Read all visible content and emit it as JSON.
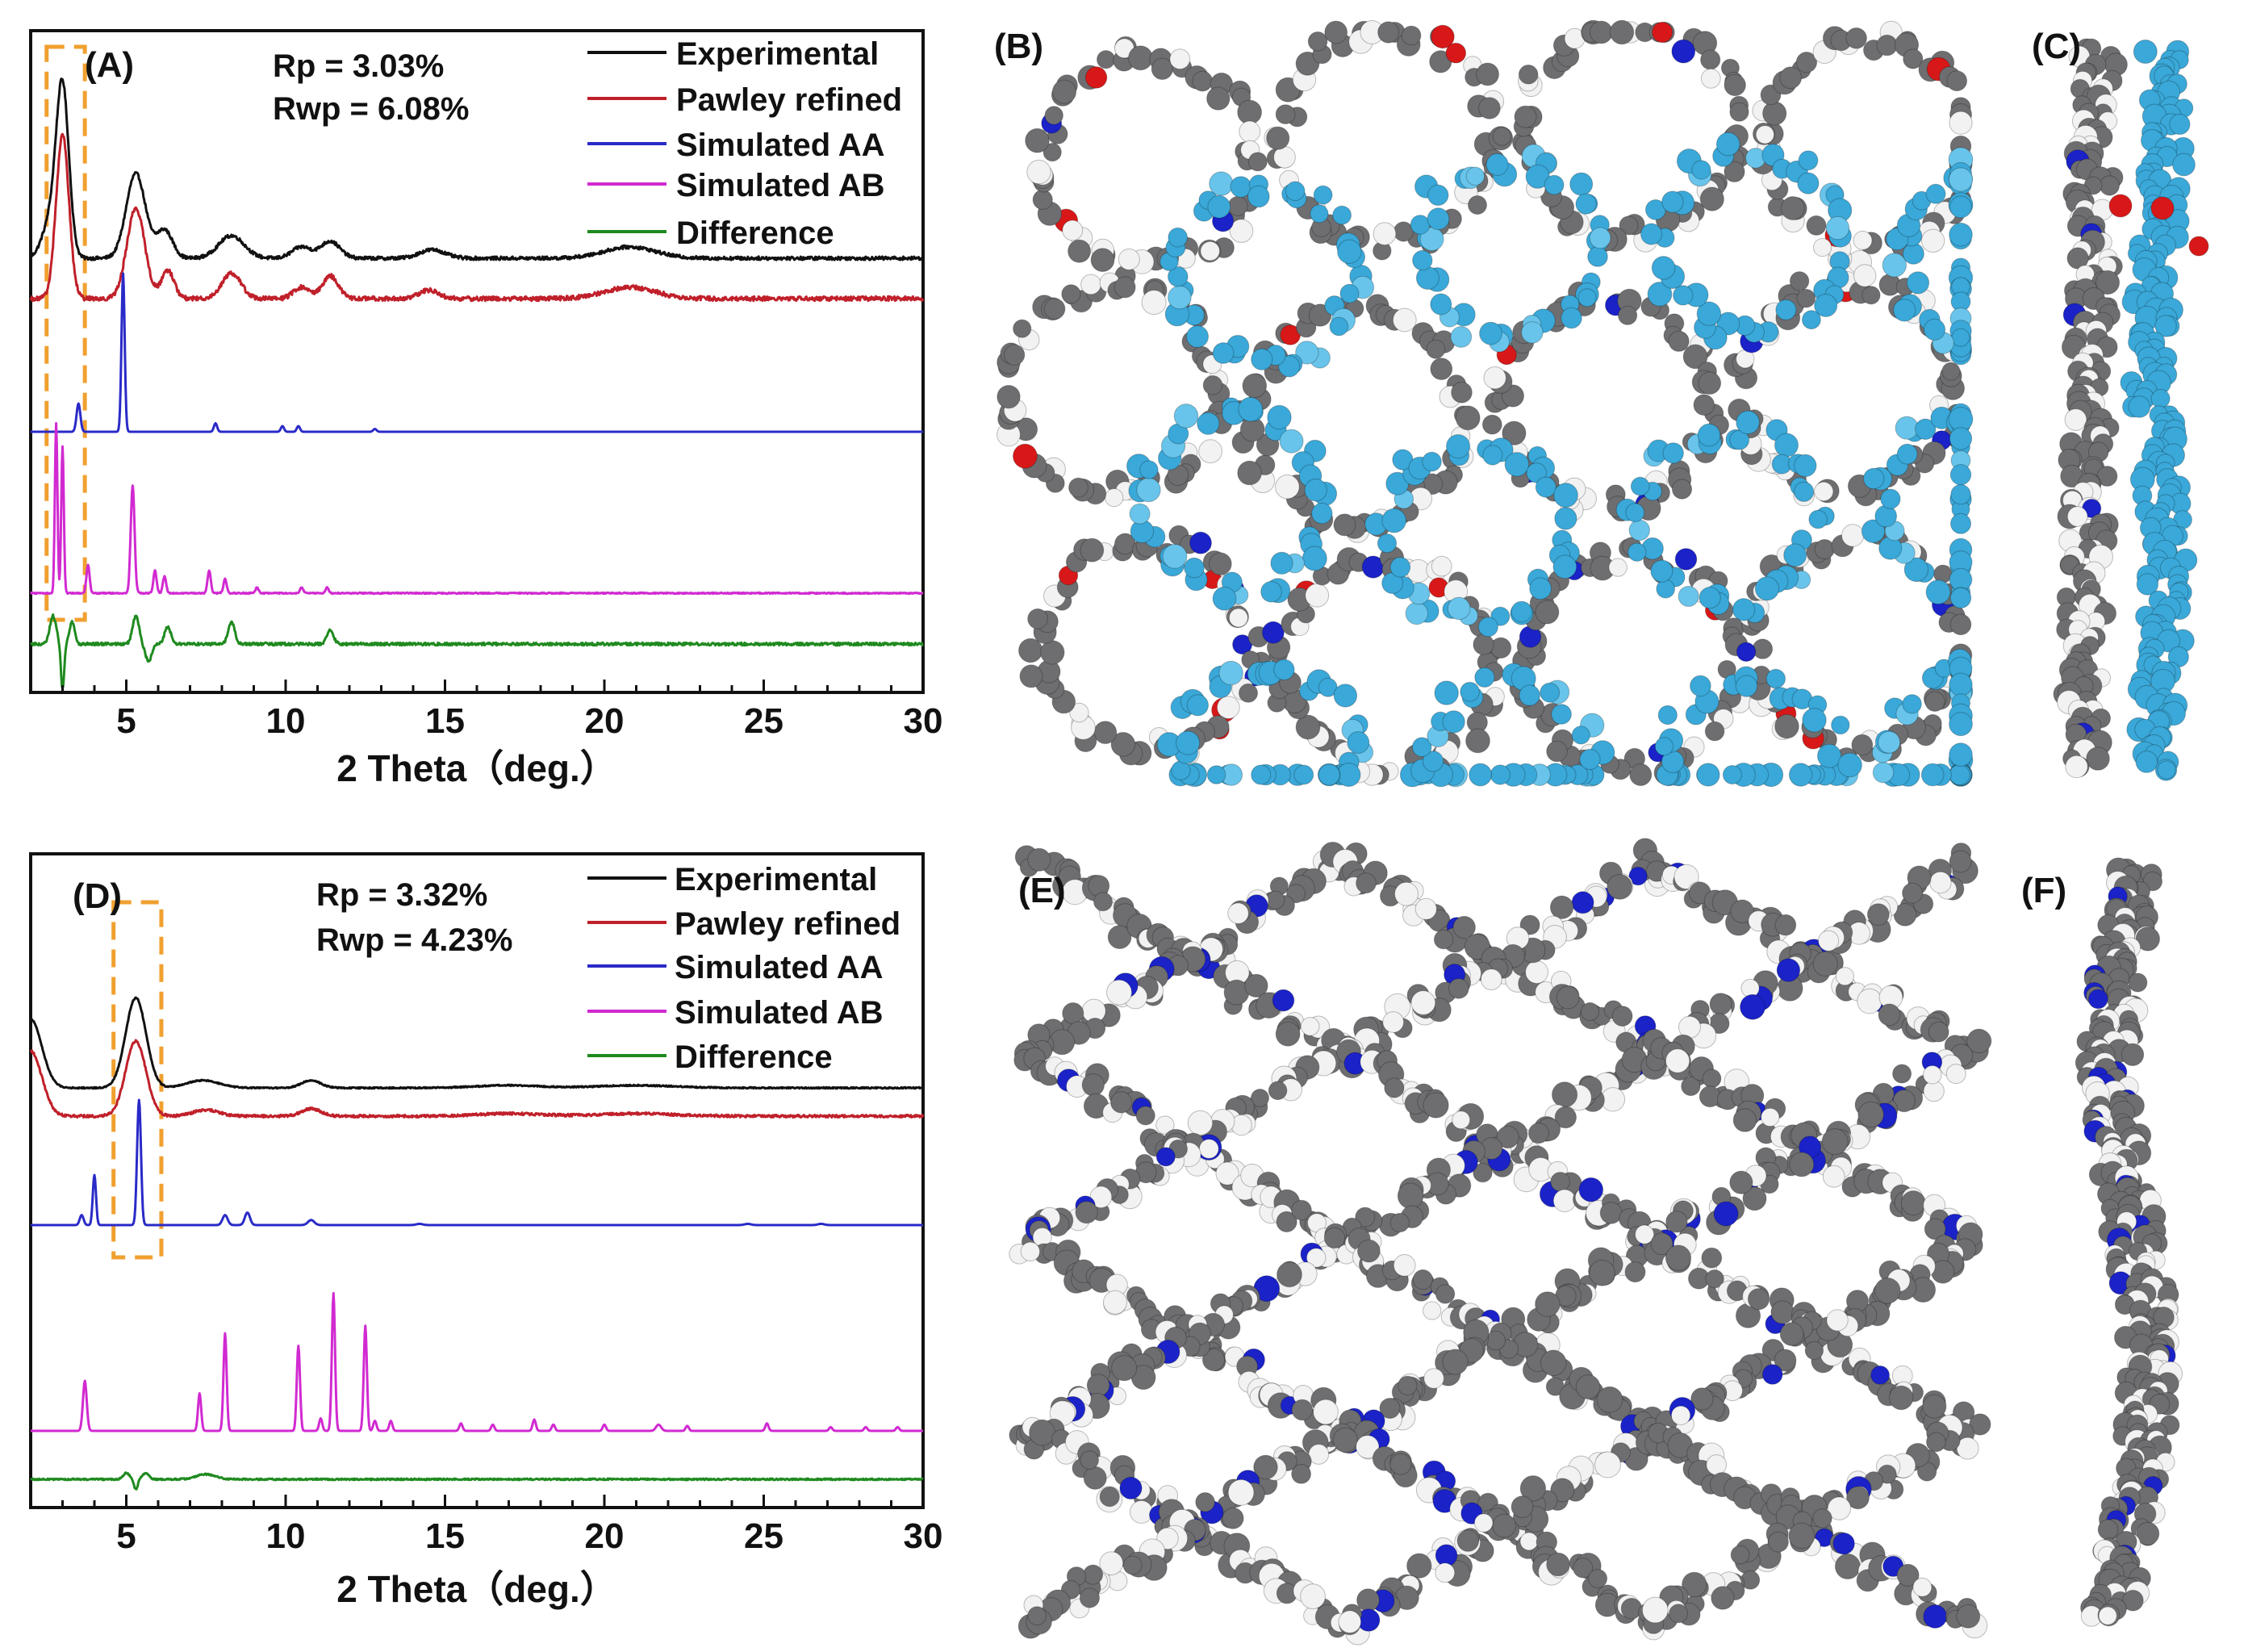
{
  "panels": {
    "A": {
      "label": "(A)",
      "rp": "Rp   = 3.03%",
      "rwp": "Rwp = 6.08%"
    },
    "B": {
      "label": "(B)"
    },
    "C": {
      "label": "(C)"
    },
    "D": {
      "label": "(D)",
      "rp": "Rp   = 3.32%",
      "rwp": "Rwp = 4.23%"
    },
    "E": {
      "label": "(E)"
    },
    "F": {
      "label": "(F)"
    }
  },
  "legend": [
    "Experimental",
    "Pawley refined",
    "Simulated AA",
    "Simulated AB",
    "Difference"
  ],
  "colors": {
    "experimental": "#111111",
    "pawley": "#c0202a",
    "aa": "#2a2ac8",
    "ab": "#d12ad1",
    "difference": "#1f8a1f",
    "highlight": "#f0a030",
    "carbon": "#6e6e70",
    "hydrogen": "#f2f2f2",
    "nitrogen": "#1a22c8",
    "oxygen": "#d81818",
    "layer2": "#3aa8d8"
  },
  "chart_data": [
    {
      "type": "line",
      "panel": "A",
      "xlabel": "2 Theta（deg.）",
      "xlim": [
        2,
        30
      ],
      "xticks": [
        5,
        10,
        15,
        20,
        25,
        30
      ],
      "highlight_range": [
        2.5,
        3.7
      ],
      "series": [
        {
          "name": "Experimental",
          "baseline": 0,
          "noise": 0.6,
          "peaks": [
            [
              3.0,
              60,
              0.2
            ],
            [
              2.6,
              12,
              0.25
            ],
            [
              5.3,
              30,
              0.3
            ],
            [
              6.2,
              10,
              0.25
            ],
            [
              8.3,
              8,
              0.4
            ],
            [
              10.5,
              4,
              0.3
            ],
            [
              11.4,
              6,
              0.3
            ],
            [
              14.6,
              3,
              0.4
            ],
            [
              20.8,
              4,
              0.8
            ]
          ]
        },
        {
          "name": "Pawley refined",
          "baseline": 0,
          "noise": 0.8,
          "peaks": [
            [
              3.0,
              58,
              0.2
            ],
            [
              5.3,
              32,
              0.28
            ],
            [
              6.3,
              10,
              0.2
            ],
            [
              8.3,
              9,
              0.3
            ],
            [
              10.5,
              4,
              0.25
            ],
            [
              11.4,
              8,
              0.25
            ],
            [
              14.5,
              3,
              0.3
            ],
            [
              20.8,
              4,
              0.8
            ]
          ]
        },
        {
          "name": "Simulated AA",
          "baseline": 0,
          "noise": 0,
          "peaks": [
            [
              3.5,
              10,
              0.06
            ],
            [
              4.9,
              56,
              0.05
            ],
            [
              7.8,
              3,
              0.05
            ],
            [
              9.9,
              2,
              0.05
            ],
            [
              10.4,
              2,
              0.05
            ],
            [
              12.8,
              1,
              0.05
            ]
          ]
        },
        {
          "name": "Simulated AB",
          "baseline": 0,
          "noise": 0.2,
          "peaks": [
            [
              2.8,
              60,
              0.04
            ],
            [
              3.0,
              52,
              0.04
            ],
            [
              3.8,
              10,
              0.05
            ],
            [
              5.2,
              38,
              0.06
            ],
            [
              5.9,
              8,
              0.05
            ],
            [
              6.2,
              6,
              0.05
            ],
            [
              7.6,
              8,
              0.05
            ],
            [
              8.1,
              5,
              0.05
            ],
            [
              9.1,
              2,
              0.05
            ],
            [
              10.5,
              2,
              0.05
            ],
            [
              11.3,
              2,
              0.05
            ]
          ]
        },
        {
          "name": "Difference",
          "baseline": 0,
          "noise": 0.5,
          "peaks": [
            [
              2.7,
              10,
              0.1
            ],
            [
              3.0,
              -16,
              0.05
            ],
            [
              3.3,
              8,
              0.08
            ],
            [
              5.3,
              10,
              0.1
            ],
            [
              5.7,
              -6,
              0.1
            ],
            [
              6.3,
              6,
              0.1
            ],
            [
              8.3,
              8,
              0.1
            ],
            [
              11.4,
              5,
              0.1
            ]
          ]
        }
      ]
    },
    {
      "type": "line",
      "panel": "D",
      "xlabel": "2 Theta（deg.）",
      "xlim": [
        2,
        30
      ],
      "xticks": [
        5,
        10,
        15,
        20,
        25,
        30
      ],
      "highlight_range": [
        4.6,
        6.1
      ],
      "series": [
        {
          "name": "Experimental",
          "baseline": 0,
          "noise": 0.5,
          "peaks": [
            [
              2.0,
              55,
              0.35
            ],
            [
              5.3,
              72,
              0.32
            ],
            [
              7.4,
              6,
              0.5
            ],
            [
              10.8,
              6,
              0.3
            ],
            [
              17,
              2,
              1.0
            ],
            [
              21,
              2,
              1.2
            ]
          ]
        },
        {
          "name": "Pawley refined",
          "baseline": 0,
          "noise": 1.0,
          "peaks": [
            [
              2.0,
              52,
              0.35
            ],
            [
              5.3,
              60,
              0.32
            ],
            [
              7.5,
              5,
              0.4
            ],
            [
              10.8,
              6,
              0.3
            ],
            [
              17,
              2,
              1.0
            ],
            [
              21,
              2,
              1.2
            ]
          ]
        },
        {
          "name": "Simulated AA",
          "baseline": 0,
          "noise": 0,
          "peaks": [
            [
              3.6,
              8,
              0.06
            ],
            [
              4.0,
              40,
              0.05
            ],
            [
              5.4,
              100,
              0.06
            ],
            [
              8.1,
              8,
              0.08
            ],
            [
              8.8,
              10,
              0.08
            ],
            [
              10.8,
              4,
              0.1
            ],
            [
              14.2,
              1,
              0.1
            ],
            [
              24.5,
              1,
              0.1
            ],
            [
              26.8,
              1,
              0.1
            ]
          ]
        },
        {
          "name": "Simulated AB",
          "baseline": 0,
          "noise": 0,
          "peaks": [
            [
              3.7,
              40,
              0.06
            ],
            [
              7.3,
              30,
              0.05
            ],
            [
              8.1,
              78,
              0.05
            ],
            [
              10.4,
              68,
              0.05
            ],
            [
              11.1,
              10,
              0.05
            ],
            [
              11.5,
              110,
              0.05
            ],
            [
              12.5,
              84,
              0.05
            ],
            [
              12.8,
              8,
              0.05
            ],
            [
              13.3,
              8,
              0.05
            ],
            [
              15.5,
              6,
              0.05
            ],
            [
              16.5,
              5,
              0.05
            ],
            [
              17.8,
              9,
              0.05
            ],
            [
              18.4,
              5,
              0.05
            ],
            [
              20.0,
              5,
              0.05
            ],
            [
              21.7,
              5,
              0.08
            ],
            [
              22.6,
              4,
              0.05
            ],
            [
              25.1,
              6,
              0.05
            ],
            [
              27.1,
              3,
              0.05
            ],
            [
              28.2,
              3,
              0.05
            ],
            [
              29.2,
              3,
              0.05
            ]
          ]
        },
        {
          "name": "Difference",
          "baseline": 0,
          "noise": 0.6,
          "peaks": [
            [
              5.0,
              5,
              0.1
            ],
            [
              5.3,
              -8,
              0.06
            ],
            [
              5.6,
              5,
              0.1
            ],
            [
              7.5,
              4,
              0.3
            ]
          ]
        }
      ]
    }
  ]
}
